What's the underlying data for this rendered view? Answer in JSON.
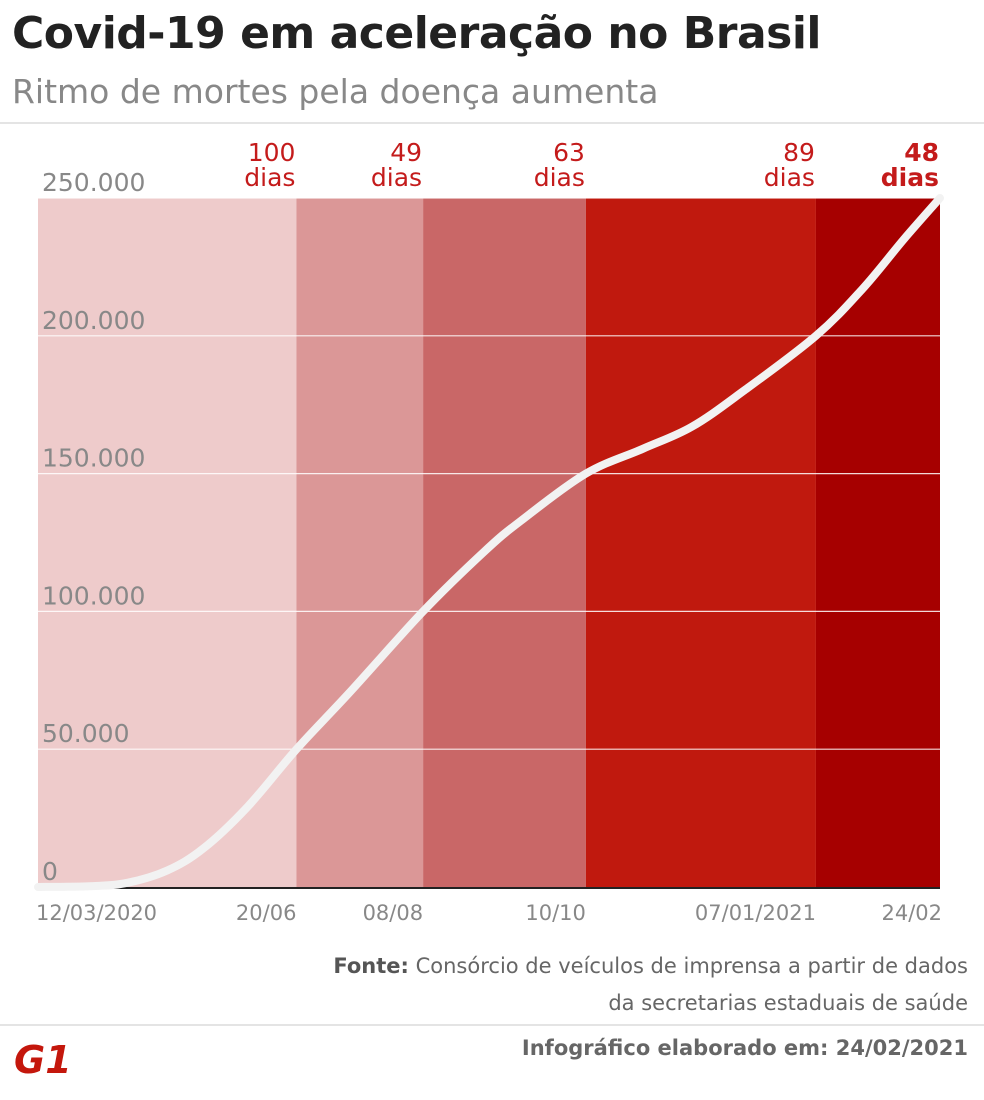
{
  "header": {
    "title": "Covid-19 em aceleração no Brasil",
    "subtitle": "Ritmo de mortes pela doença aumenta"
  },
  "chart_data": {
    "type": "line",
    "title": "Covid-19 em aceleração no Brasil",
    "subtitle": "Ritmo de mortes pela doença aumenta",
    "x_start": "2020-03-12",
    "x_end": "2021-02-24",
    "x": [
      "2020-03-12",
      "2020-04-01",
      "2020-04-15",
      "2020-05-01",
      "2020-05-15",
      "2020-06-01",
      "2020-06-20",
      "2020-07-10",
      "2020-08-08",
      "2020-09-01",
      "2020-09-15",
      "2020-10-10",
      "2020-11-01",
      "2020-11-20",
      "2020-12-10",
      "2021-01-07",
      "2021-01-25",
      "2021-02-10",
      "2021-02-24"
    ],
    "series": [
      {
        "values": [
          0,
          300,
          1400,
          6000,
          14000,
          29000,
          50000,
          70000,
          100000,
          122000,
          133000,
          150000,
          159000,
          167000,
          180000,
          200000,
          217000,
          235000,
          250000
        ]
      }
    ],
    "ylim": [
      0,
      250000
    ],
    "y_ticks": [
      0,
      50000,
      100000,
      150000,
      200000,
      250000
    ],
    "y_tick_labels": [
      "0",
      "50.000",
      "100.000",
      "150.000",
      "200.000",
      "250.000"
    ],
    "x_tick_dates": [
      "2020-03-12",
      "2020-06-20",
      "2020-08-08",
      "2020-10-10",
      "2021-01-07",
      "2021-02-24"
    ],
    "x_tick_labels": [
      "12/03/2020",
      "20/06",
      "08/08",
      "10/10",
      "07/01/2021",
      "24/02"
    ],
    "periods": [
      {
        "start": "2020-03-12",
        "end": "2020-06-20",
        "label_value": "100",
        "label_unit": "dias",
        "color": "#eecbcb",
        "label_color": "#c41b1b",
        "bold": false
      },
      {
        "start": "2020-06-20",
        "end": "2020-08-08",
        "label_value": "49",
        "label_unit": "dias",
        "color": "#db9797",
        "label_color": "#c41b1b",
        "bold": false
      },
      {
        "start": "2020-08-08",
        "end": "2020-10-10",
        "label_value": "63",
        "label_unit": "dias",
        "color": "#c96767",
        "label_color": "#c41b1b",
        "bold": false
      },
      {
        "start": "2020-10-10",
        "end": "2021-01-07",
        "label_value": "89",
        "label_unit": "dias",
        "color": "#c0190e",
        "label_color": "#c41b1b",
        "bold": false
      },
      {
        "start": "2021-01-07",
        "end": "2021-02-24",
        "label_value": "48",
        "label_unit": "dias",
        "color": "#a60000",
        "label_color": "#c41b1b",
        "bold": true
      }
    ],
    "line_color": "#f2f2f2",
    "tick_label_color": "#888888",
    "grid": true
  },
  "footer": {
    "source_label": "Fonte:",
    "source_text_line1": "Consórcio de veículos de imprensa a partir de dados",
    "source_text_line2": "da secretarias estaduais de saúde",
    "credit": "Infográfico elaborado em: 24/02/2021",
    "logo_text": "G1",
    "brand_color": "#c4170c"
  }
}
